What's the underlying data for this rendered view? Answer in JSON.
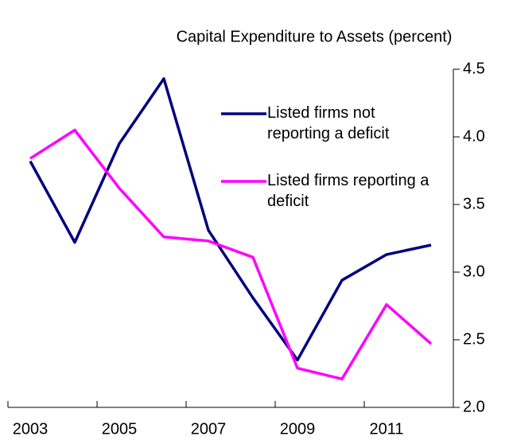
{
  "chart_data": {
    "type": "line",
    "title": "Capital Expenditure to Assets (percent)",
    "categories": [
      "2003",
      null,
      "2005",
      null,
      "2007",
      null,
      "2009",
      null,
      "2011",
      null
    ],
    "series": [
      {
        "name": "Listed firms not reporting a deficit",
        "color": "#000080",
        "values": [
          3.82,
          3.22,
          3.95,
          4.43,
          3.31,
          2.81,
          2.35,
          2.94,
          3.13,
          3.2
        ]
      },
      {
        "name": "Listed firms reporting a deficit",
        "color": "#ff00ff",
        "values": [
          3.84,
          4.05,
          3.62,
          3.26,
          3.23,
          3.11,
          2.29,
          2.21,
          2.76,
          2.47
        ]
      }
    ],
    "ylim": [
      2.0,
      4.5
    ],
    "yticks": [
      {
        "value": 2.0,
        "label": "2.0"
      },
      {
        "value": 2.5,
        "label": "2.5"
      },
      {
        "value": 3.0,
        "label": "3.0"
      },
      {
        "value": 3.5,
        "label": "3.5"
      },
      {
        "value": 4.0,
        "label": "4.0"
      },
      {
        "value": 4.5,
        "label": "4.5"
      }
    ],
    "grid": false,
    "legend": "top-right"
  }
}
